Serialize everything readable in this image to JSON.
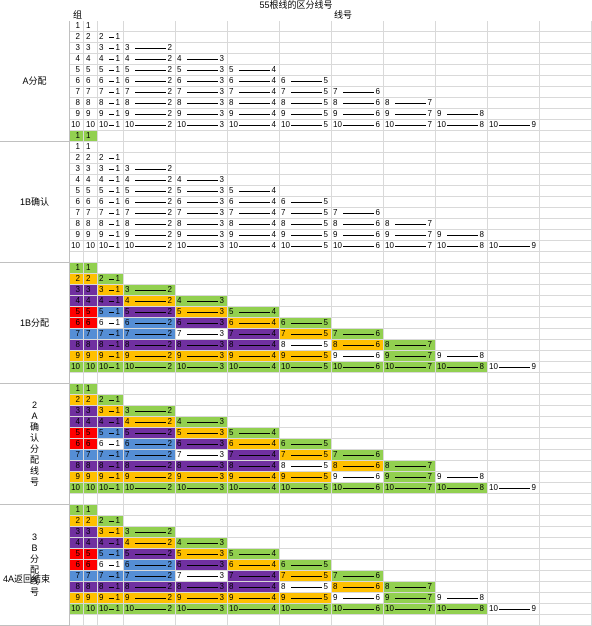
{
  "title": "55根线的区分线号",
  "header_group": "组",
  "header_wire": "线号",
  "footer": "4A返回结束",
  "colors": {
    "green": "#92d050",
    "orange": "#ffc000",
    "purple": "#7030a0",
    "blue": "#558ed5",
    "red": "#ff0000",
    "white": "#ffffff"
  },
  "groups": [
    {
      "label": "A分配",
      "style": "plain"
    },
    {
      "label": "1B确认",
      "style": "plain"
    },
    {
      "label": "1B分配",
      "style": "colored"
    },
    {
      "label": "2\nA\n确\n认\n分\n配\n线\n号",
      "style": "colored"
    },
    {
      "label": "3\nB\n分\n配\n线\n号",
      "style": "colored"
    }
  ],
  "row_numbers": [
    1,
    2,
    3,
    4,
    5,
    6,
    7,
    8,
    9,
    10
  ],
  "color_pattern": [
    [
      "green"
    ],
    [
      "orange",
      "green"
    ],
    [
      "purple",
      "orange",
      "green"
    ],
    [
      "purple",
      "purple",
      "orange",
      "green"
    ],
    [
      "red",
      "blue",
      "purple",
      "orange",
      "green"
    ],
    [
      "red",
      "white",
      "blue",
      "purple",
      "orange",
      "green"
    ],
    [
      "blue",
      "blue",
      "blue",
      "white",
      "purple",
      "orange",
      "green"
    ],
    [
      "purple",
      "purple",
      "purple",
      "purple",
      "purple",
      "white",
      "orange",
      "green"
    ],
    [
      "orange",
      "orange",
      "orange",
      "orange",
      "orange",
      "orange",
      "white",
      "green",
      "white"
    ],
    [
      "green",
      "green",
      "green",
      "green",
      "green",
      "green",
      "green",
      "green",
      "green",
      "white"
    ]
  ]
}
